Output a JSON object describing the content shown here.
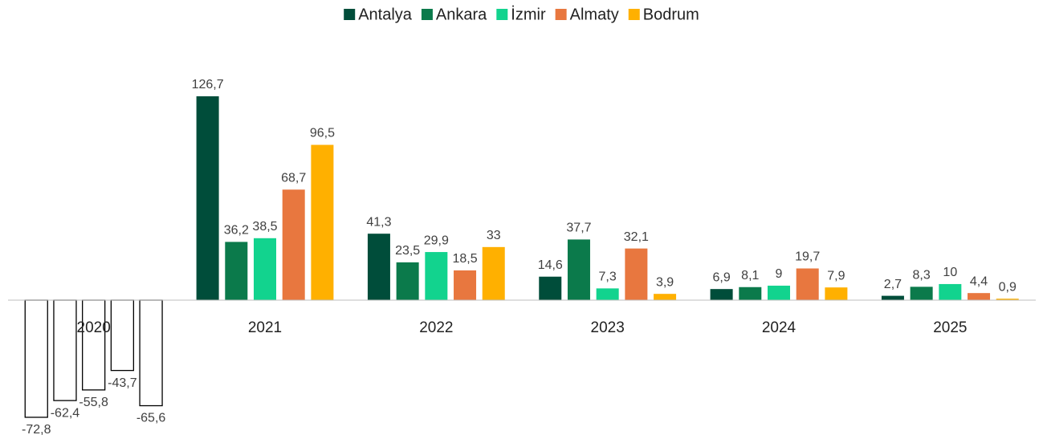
{
  "chart_data": {
    "type": "bar",
    "categories": [
      "2020",
      "2021",
      "2022",
      "2023",
      "2024",
      "2025"
    ],
    "series": [
      {
        "name": "Antalya",
        "color": "#004d3a",
        "values": [
          -72.8,
          126.7,
          41.3,
          14.6,
          6.9,
          2.7
        ],
        "value_labels": [
          "-72,8",
          "126,7",
          "41,3",
          "14,6",
          "6,9",
          "2,7"
        ]
      },
      {
        "name": "Ankara",
        "color": "#0b7a4b",
        "values": [
          -62.4,
          36.2,
          23.5,
          37.7,
          8.1,
          8.3
        ],
        "value_labels": [
          "-62,4",
          "36,2",
          "23,5",
          "37,7",
          "8,1",
          "8,3"
        ]
      },
      {
        "name": "İzmir",
        "color": "#12d38e",
        "values": [
          -55.8,
          38.5,
          29.9,
          7.3,
          9,
          10
        ],
        "value_labels": [
          "-55,8",
          "38,5",
          "29,9",
          "7,3",
          "9",
          "10"
        ]
      },
      {
        "name": "Almaty",
        "color": "#e8773f",
        "values": [
          -43.7,
          68.7,
          18.5,
          32.1,
          19.7,
          4.4
        ],
        "value_labels": [
          "-43,7",
          "68,7",
          "18,5",
          "32,1",
          "19,7",
          "4,4"
        ]
      },
      {
        "name": "Bodrum",
        "color": "#ffb000",
        "values": [
          -65.6,
          96.5,
          33,
          3.9,
          7.9,
          0.9
        ],
        "value_labels": [
          "-65,6",
          "96,5",
          "33",
          "3,9",
          "7,9",
          "0,9"
        ]
      }
    ],
    "ylim": [
      -80,
      140
    ],
    "invert_if_negative": true,
    "legend": "top"
  }
}
